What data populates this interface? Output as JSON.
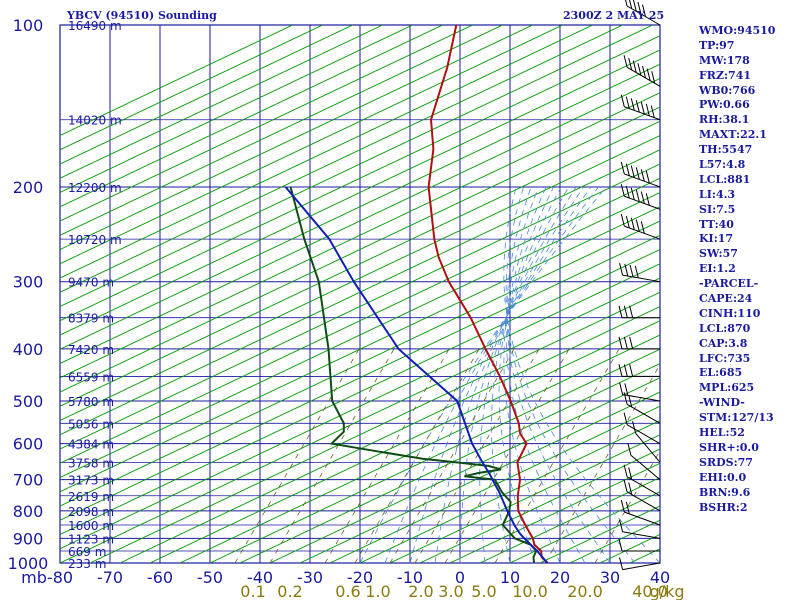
{
  "header": {
    "title": "YBCV (94510) Sounding",
    "timestamp": "2300Z  2 MAY 25"
  },
  "indices": [
    "WMO:94510",
    "TP:97",
    "MW:178",
    "FRZ:741",
    "WB0:766",
    "PW:0.66",
    "RH:38.1",
    "MAXT:22.1",
    "TH:5547",
    "L57:4.8",
    "LCL:881",
    "LI:4.3",
    "SI:7.5",
    "TT:40",
    "KI:17",
    "SW:57",
    "EI:1.2",
    "-PARCEL-",
    "CAPE:24",
    "CINH:110",
    "LCL:870",
    "CAP:3.8",
    "LFC:735",
    "EL:685",
    "MPL:625",
    "-WIND-",
    "STM:127/13",
    "HEL:52",
    "SHR+:0.0",
    "SRDS:77",
    "EHI:0.0",
    "BRN:9.6",
    "BSHR:2"
  ],
  "colors": {
    "grid": "#1a1aa0",
    "dry_adiabat": "#009a00",
    "temperature": "#b01010",
    "dewpoint": "#0e4d16",
    "parcel": "#1020b0",
    "mixing_ratio_text": "#8a7a10",
    "moist_adiabat": "#4a8ad8",
    "mixing_ratio_line": "#6a6020"
  },
  "chart_data": {
    "type": "line",
    "title": "YBCV (94510) Sounding",
    "xlabel": "",
    "ylabel": "mb",
    "xlim": [
      -80,
      40
    ],
    "ylim": [
      1000,
      100
    ],
    "y_scale": "log",
    "skew": true,
    "grid": true,
    "pressure_levels": [
      100,
      200,
      300,
      400,
      500,
      600,
      700,
      800,
      900,
      1000
    ],
    "pressure_labels": [
      "100",
      "200",
      "300",
      "400",
      "500",
      "600",
      "700",
      "800",
      "900",
      "1000"
    ],
    "y_axis_label": "mb",
    "temperature_ticks": [
      -80,
      -70,
      -60,
      -50,
      -40,
      -30,
      -20,
      -10,
      0,
      10,
      20,
      30,
      40
    ],
    "temperature_labels": [
      "-80",
      "-70",
      "-60",
      "-50",
      "-40",
      "-30",
      "-20",
      "-10",
      "0",
      "10",
      "20",
      "30",
      "40"
    ],
    "height_labels": [
      {
        "p": 100,
        "text": "16490 m"
      },
      {
        "p": 150,
        "text": "14020 m"
      },
      {
        "p": 200,
        "text": "12200 m"
      },
      {
        "p": 250,
        "text": "10720 m"
      },
      {
        "p": 300,
        "text": "9470 m"
      },
      {
        "p": 350,
        "text": "8379 m"
      },
      {
        "p": 400,
        "text": "7420 m"
      },
      {
        "p": 450,
        "text": "6559 m"
      },
      {
        "p": 500,
        "text": "5780 m"
      },
      {
        "p": 550,
        "text": "5056 m"
      },
      {
        "p": 600,
        "text": "4384 m"
      },
      {
        "p": 650,
        "text": "3758 m"
      },
      {
        "p": 700,
        "text": "3173 m"
      },
      {
        "p": 750,
        "text": "2619 m"
      },
      {
        "p": 800,
        "text": "2098 m"
      },
      {
        "p": 850,
        "text": "1600 m"
      },
      {
        "p": 900,
        "text": "1123 m"
      },
      {
        "p": 950,
        "text": "669 m"
      },
      {
        "p": 1000,
        "text": "233 m"
      }
    ],
    "mixing_ratio_labels": [
      "0.1",
      "0.2",
      "0.6",
      "1.0",
      "2.0",
      "3.0",
      "5.0",
      "10.0",
      "20.0",
      "40.0",
      "g/kg"
    ],
    "mixing_ratio_values": [
      0.1,
      0.2,
      0.6,
      1.0,
      2.0,
      3.0,
      5.0,
      10.0,
      20.0,
      40.0
    ],
    "series": [
      {
        "key": "temperature",
        "points": [
          [
            1000,
            17.5
          ],
          [
            975,
            15.6
          ],
          [
            950,
            14.8
          ],
          [
            925,
            12.7
          ],
          [
            900,
            11.6
          ],
          [
            850,
            8.5
          ],
          [
            800,
            5.4
          ],
          [
            750,
            3.5
          ],
          [
            700,
            2.0
          ],
          [
            650,
            -0.6
          ],
          [
            600,
            -1.0
          ],
          [
            575,
            -3.5
          ],
          [
            550,
            -5.0
          ],
          [
            500,
            -9.3
          ],
          [
            450,
            -14.4
          ],
          [
            400,
            -20.6
          ],
          [
            350,
            -27.3
          ],
          [
            300,
            -36.0
          ],
          [
            270,
            -41.0
          ],
          [
            250,
            -44.0
          ],
          [
            200,
            -51.4
          ],
          [
            170,
            -55.0
          ],
          [
            150,
            -59.0
          ],
          [
            120,
            -62.0
          ],
          [
            100,
            -65.3
          ]
        ]
      },
      {
        "key": "dewpoint",
        "points": [
          [
            1000,
            14.8
          ],
          [
            975,
            14.0
          ],
          [
            950,
            13.8
          ],
          [
            925,
            12.0
          ],
          [
            900,
            8.0
          ],
          [
            850,
            4.0
          ],
          [
            800,
            3.6
          ],
          [
            770,
            2.8
          ],
          [
            740,
            0.0
          ],
          [
            700,
            -3.0
          ],
          [
            690,
            -9.5
          ],
          [
            680,
            -7.0
          ],
          [
            670,
            -3.0
          ],
          [
            660,
            -6.0
          ],
          [
            650,
            -13.0
          ],
          [
            640,
            -20.0
          ],
          [
            620,
            -30.0
          ],
          [
            600,
            -40.0
          ],
          [
            570,
            -39.0
          ],
          [
            550,
            -40.0
          ],
          [
            500,
            -45.0
          ],
          [
            400,
            -52.0
          ],
          [
            300,
            -62.0
          ],
          [
            250,
            -70.0
          ],
          [
            200,
            -79.0
          ]
        ]
      },
      {
        "key": "parcel",
        "points": [
          [
            1000,
            17.5
          ],
          [
            950,
            14.0
          ],
          [
            900,
            9.9
          ],
          [
            881,
            8.4
          ],
          [
            850,
            6.3
          ],
          [
            800,
            3.2
          ],
          [
            750,
            0.1
          ],
          [
            735,
            -0.9
          ],
          [
            700,
            -3.5
          ],
          [
            685,
            -4.6
          ],
          [
            650,
            -7.6
          ],
          [
            600,
            -11.9
          ],
          [
            500,
            -20.0
          ],
          [
            400,
            -38.0
          ],
          [
            300,
            -55.0
          ],
          [
            250,
            -65.0
          ],
          [
            200,
            -80.0
          ]
        ]
      }
    ],
    "wind_profile": [
      {
        "p": 1000,
        "dir": 260,
        "spd": 5
      },
      {
        "p": 950,
        "dir": 270,
        "spd": 10
      },
      {
        "p": 900,
        "dir": 280,
        "spd": 10
      },
      {
        "p": 850,
        "dir": 290,
        "spd": 15
      },
      {
        "p": 800,
        "dir": 300,
        "spd": 15
      },
      {
        "p": 750,
        "dir": 300,
        "spd": 15
      },
      {
        "p": 700,
        "dir": 310,
        "spd": 10
      },
      {
        "p": 650,
        "dir": 320,
        "spd": 10
      },
      {
        "p": 600,
        "dir": 300,
        "spd": 10
      },
      {
        "p": 550,
        "dir": 300,
        "spd": 15
      },
      {
        "p": 500,
        "dir": 280,
        "spd": 20
      },
      {
        "p": 450,
        "dir": 270,
        "spd": 25
      },
      {
        "p": 400,
        "dir": 270,
        "spd": 30
      },
      {
        "p": 350,
        "dir": 270,
        "spd": 25
      },
      {
        "p": 300,
        "dir": 280,
        "spd": 40
      },
      {
        "p": 250,
        "dir": 290,
        "spd": 50
      },
      {
        "p": 220,
        "dir": 290,
        "spd": 55
      },
      {
        "p": 200,
        "dir": 290,
        "spd": 60
      },
      {
        "p": 150,
        "dir": 290,
        "spd": 70
      },
      {
        "p": 130,
        "dir": 300,
        "spd": 65
      },
      {
        "p": 100,
        "dir": 300,
        "spd": 50
      }
    ]
  }
}
